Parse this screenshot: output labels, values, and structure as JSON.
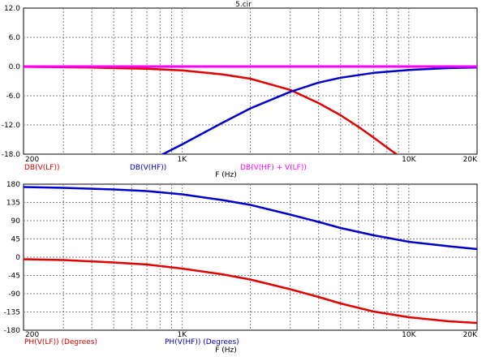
{
  "window_title": "5.cir",
  "chart_data": [
    {
      "type": "line",
      "xscale": "log",
      "xlim": [
        200,
        20000
      ],
      "ylim": [
        -18,
        12
      ],
      "x_ticks": [
        200,
        1000,
        10000,
        20000
      ],
      "x_tick_labels": [
        "200",
        "1K",
        "10K",
        "20K"
      ],
      "y_ticks": [
        12,
        6,
        0,
        -6,
        -12,
        -18
      ],
      "y_tick_labels": [
        "12.0",
        "6.0",
        "0.0",
        "-6.0",
        "-12.0",
        "-18.0"
      ],
      "xlabel": "F (Hz)",
      "grid": true,
      "legend_position": "below-left",
      "series": [
        {
          "name": "DB(V(LF))",
          "color": "#e00000",
          "x": [
            200,
            400,
            700,
            1000,
            1500,
            2000,
            3000,
            4000,
            5000,
            6000,
            7000,
            8000,
            9000
          ],
          "y": [
            -0.07,
            -0.21,
            -0.45,
            -0.8,
            -1.6,
            -2.5,
            -4.8,
            -7.5,
            -10.0,
            -12.4,
            -14.6,
            -16.6,
            -18.3
          ]
        },
        {
          "name": "DB(V(HF))",
          "color": "#0000cc",
          "x": [
            800,
            1000,
            1500,
            2000,
            3000,
            4000,
            5000,
            7000,
            10000,
            15000,
            20000
          ],
          "y": [
            -18.3,
            -16.0,
            -11.6,
            -8.6,
            -5.2,
            -3.3,
            -2.3,
            -1.3,
            -0.7,
            -0.32,
            -0.18
          ]
        },
        {
          "name": "DB(V(HF) + V(LF))",
          "color": "#ff00ff",
          "x": [
            200,
            20000
          ],
          "y": [
            0,
            0
          ]
        }
      ],
      "legend_labels": [
        "DB(V(LF))",
        "DB(V(HF))",
        "DB(V(HF) +  V(LF))"
      ]
    },
    {
      "type": "line",
      "xscale": "log",
      "xlim": [
        200,
        20000
      ],
      "ylim": [
        -180,
        180
      ],
      "x_ticks": [
        200,
        1000,
        10000,
        20000
      ],
      "x_tick_labels": [
        "200",
        "1K",
        "10K",
        "20K"
      ],
      "y_ticks": [
        180,
        135,
        90,
        45,
        0,
        -45,
        -90,
        -135,
        -180
      ],
      "y_tick_labels": [
        "180",
        "135",
        "90",
        "45",
        "0",
        "-45",
        "-90",
        "-135",
        "-180"
      ],
      "xlabel": "F (Hz)",
      "grid": true,
      "legend_position": "below-left",
      "series": [
        {
          "name": "PH(V(HF)) (Degrees)",
          "color": "#0000cc",
          "x": [
            200,
            300,
            500,
            700,
            1000,
            1500,
            2000,
            3000,
            4000,
            5000,
            7000,
            10000,
            15000,
            20000
          ],
          "y": [
            173,
            171,
            167,
            163,
            155,
            141,
            129,
            105,
            87,
            72,
            54,
            38,
            27,
            20
          ]
        },
        {
          "name": "PH(V(LF)) (Degrees)",
          "color": "#e00000",
          "x": [
            200,
            300,
            500,
            700,
            1000,
            1500,
            2000,
            3000,
            4000,
            5000,
            7000,
            10000,
            15000,
            20000
          ],
          "y": [
            -5,
            -7,
            -13,
            -18,
            -28,
            -42,
            -55,
            -79,
            -98,
            -114,
            -134,
            -148,
            -158,
            -162
          ]
        }
      ],
      "legend_labels": [
        "PH(V(LF)) (Degrees)",
        "PH(V(HF)) (Degrees)"
      ]
    }
  ]
}
